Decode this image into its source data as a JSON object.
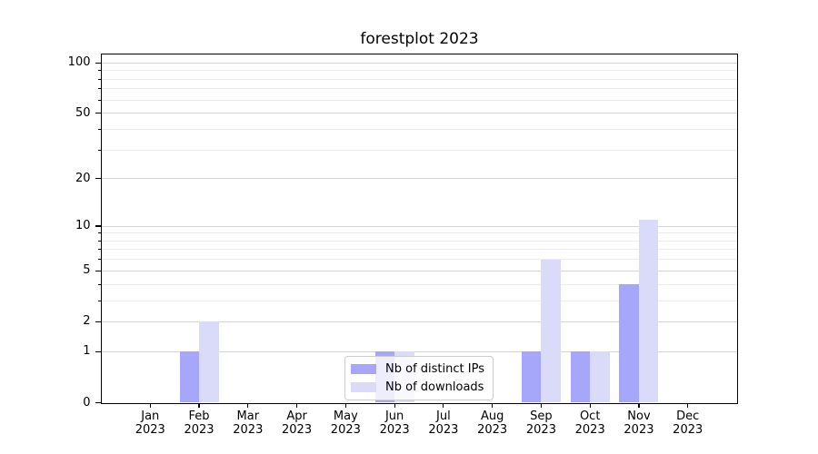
{
  "chart_data": {
    "type": "bar",
    "title": "forestplot 2023",
    "categories": [
      {
        "month": "Jan",
        "year": "2023"
      },
      {
        "month": "Feb",
        "year": "2023"
      },
      {
        "month": "Mar",
        "year": "2023"
      },
      {
        "month": "Apr",
        "year": "2023"
      },
      {
        "month": "May",
        "year": "2023"
      },
      {
        "month": "Jun",
        "year": "2023"
      },
      {
        "month": "Jul",
        "year": "2023"
      },
      {
        "month": "Aug",
        "year": "2023"
      },
      {
        "month": "Sep",
        "year": "2023"
      },
      {
        "month": "Oct",
        "year": "2023"
      },
      {
        "month": "Nov",
        "year": "2023"
      },
      {
        "month": "Dec",
        "year": "2023"
      }
    ],
    "series": [
      {
        "name": "Nb of distinct IPs",
        "color": "#a6a6fa",
        "values": [
          0,
          1,
          0,
          0,
          0,
          1,
          0,
          0,
          1,
          1,
          4,
          0
        ]
      },
      {
        "name": "Nb of downloads",
        "color": "#dadaf9",
        "values": [
          0,
          2,
          0,
          0,
          0,
          1,
          0,
          0,
          6,
          1,
          11,
          0
        ]
      }
    ],
    "yscale": "log1p",
    "yticks": [
      0,
      1,
      2,
      5,
      10,
      20,
      50,
      100
    ],
    "minor_yticks": [
      3,
      4,
      6,
      7,
      8,
      9,
      30,
      40,
      60,
      70,
      80,
      90
    ],
    "ylim": [
      0,
      113
    ],
    "grid": true,
    "legend_position": "lower center"
  },
  "colors": {
    "grid_major": "#d4d4d4",
    "grid_minor": "#ececec",
    "spine": "#000000",
    "legend_border": "#cccccc",
    "text": "#000000"
  }
}
